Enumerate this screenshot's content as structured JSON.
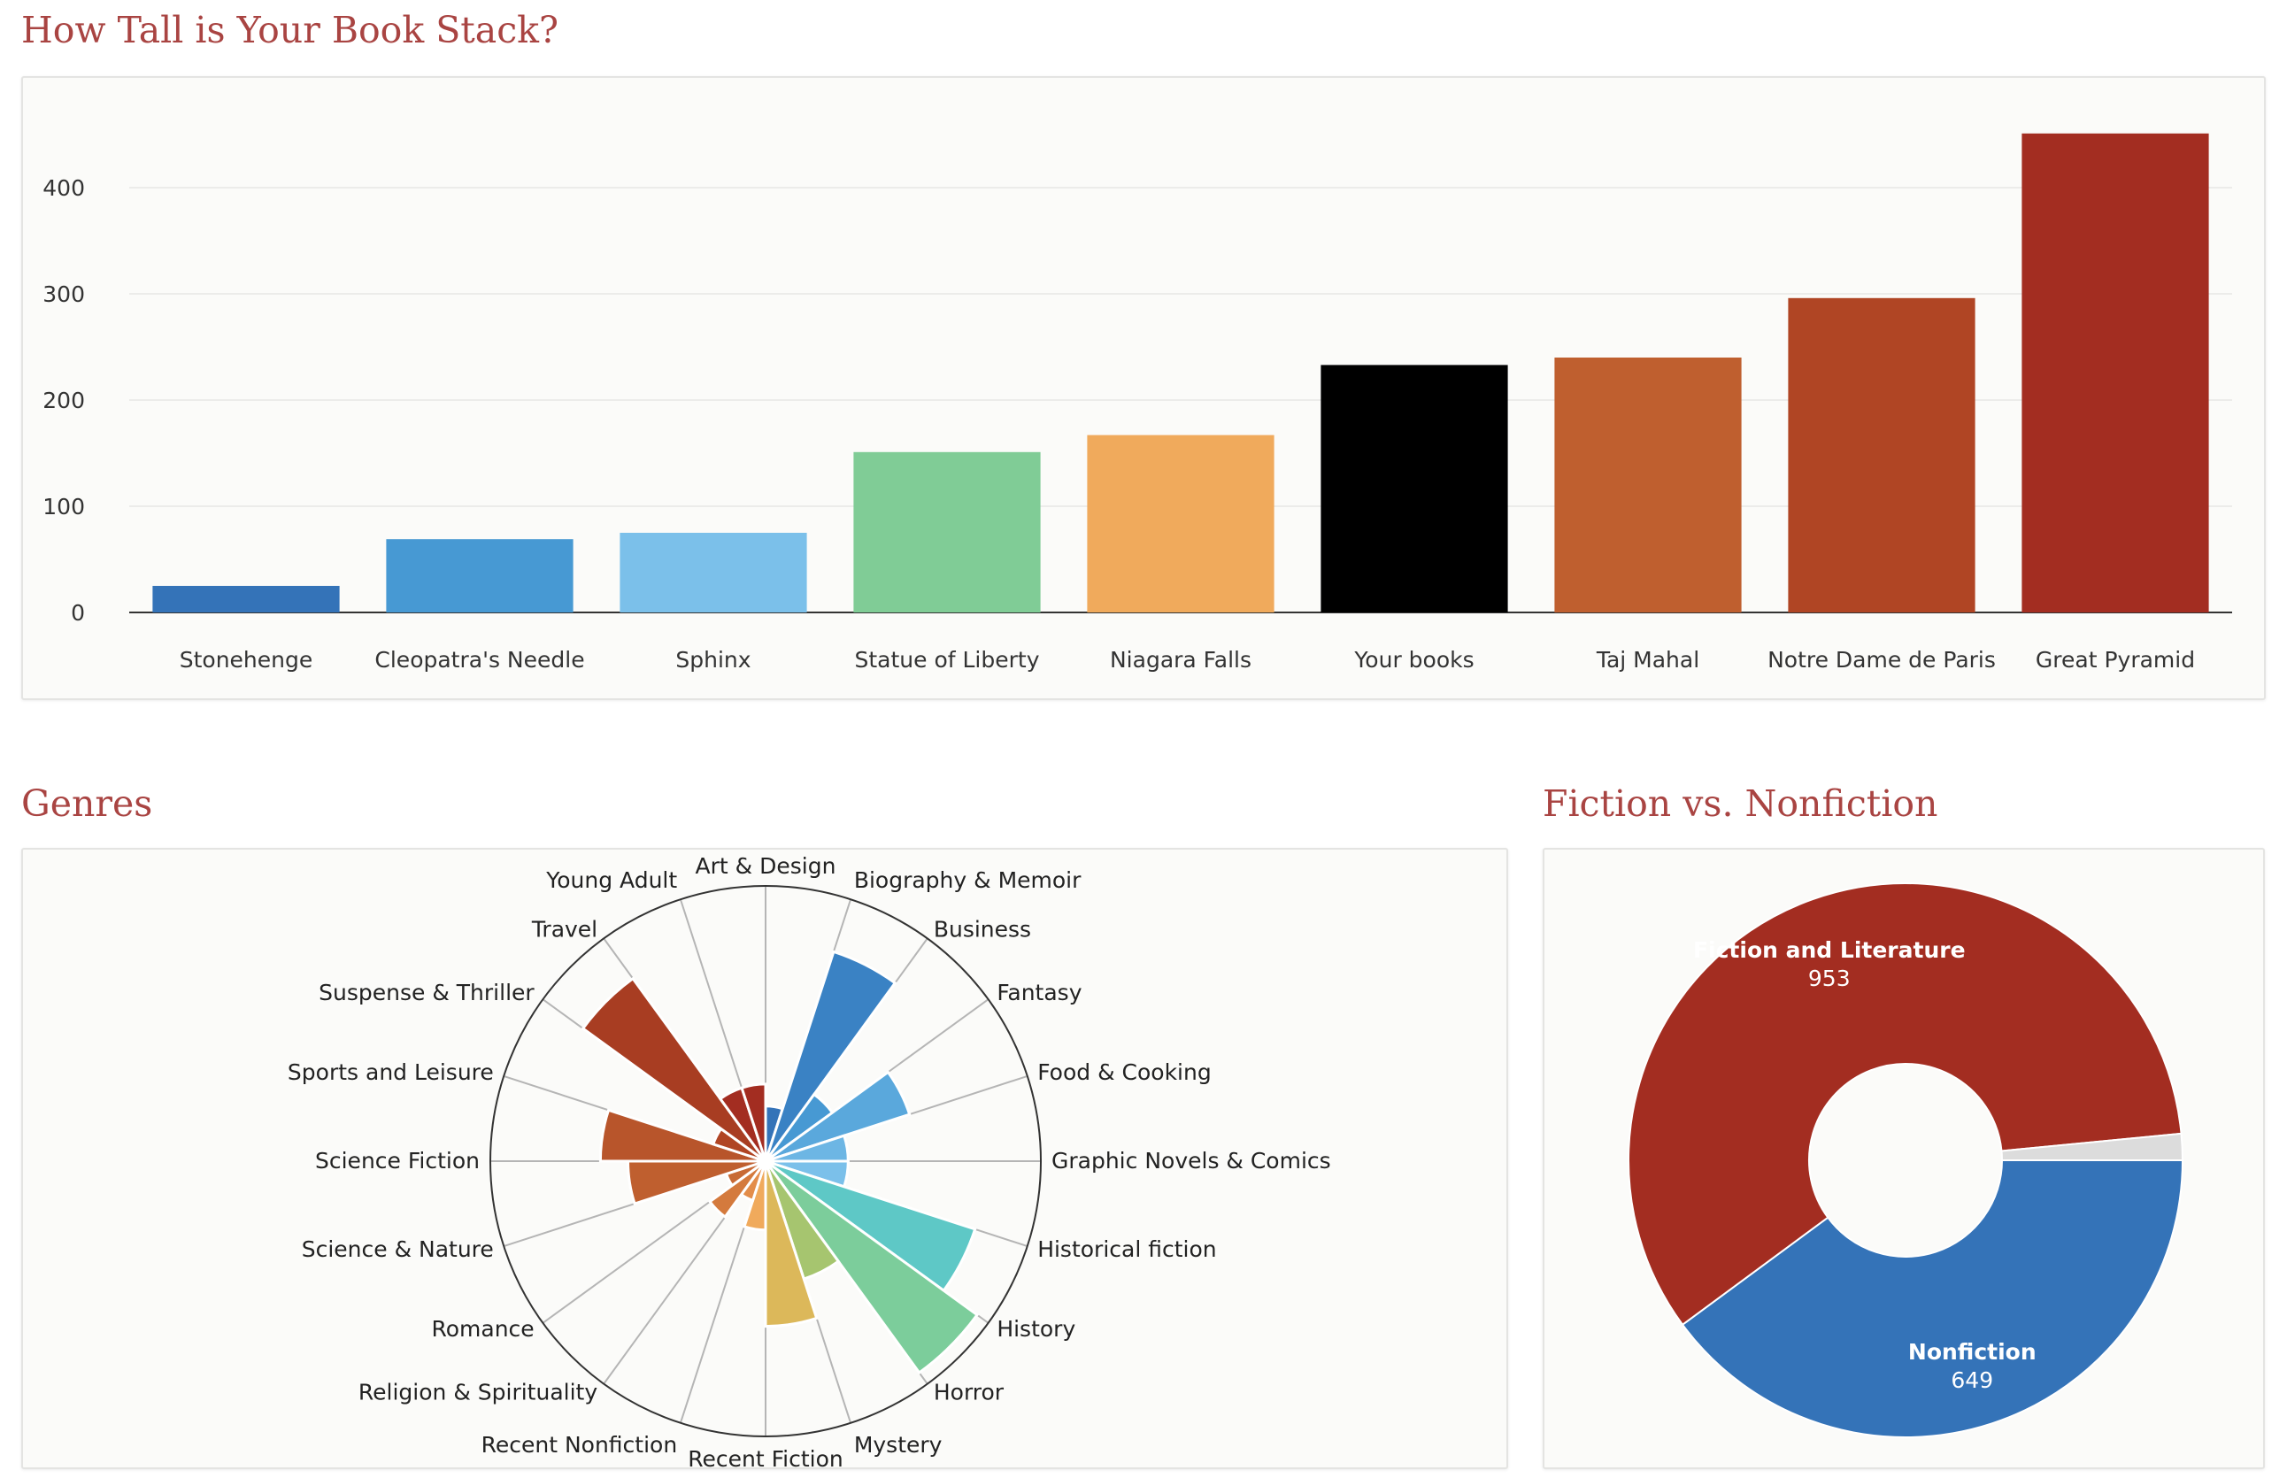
{
  "sections": {
    "book_stack_title": "How Tall is Your Book Stack?",
    "genres_title": "Genres",
    "fiction_title": "Fiction vs. Nonfiction"
  },
  "chart_data": [
    {
      "type": "bar",
      "title": "How Tall is Your Book Stack?",
      "categories": [
        "Stonehenge",
        "Cleopatra's Needle",
        "Sphinx",
        "Statue of Liberty",
        "Niagara Falls",
        "Your books",
        "Taj Mahal",
        "Notre Dame de Paris",
        "Great Pyramid"
      ],
      "values": [
        25,
        69,
        75,
        151,
        167,
        233,
        240,
        296,
        451
      ],
      "colors": [
        "#3473b8",
        "#4799d3",
        "#7bc0ea",
        "#80cc96",
        "#f0aa5c",
        "#000000",
        "#bf5f2f",
        "#b04524",
        "#a32d21"
      ],
      "yticks": [
        0,
        100,
        200,
        300,
        400
      ],
      "ylim": [
        0,
        470
      ],
      "grid": true
    },
    {
      "type": "polar-area",
      "title": "Genres",
      "categories": [
        "Art & Design",
        "Biography & Memoir",
        "Business",
        "Fantasy",
        "Food & Cooking",
        "Graphic Novels & Comics",
        "Historical fiction",
        "History",
        "Horror",
        "Mystery",
        "Recent Fiction",
        "Recent Nonfiction",
        "Religion & Spirituality",
        "Romance",
        "Science & Nature",
        "Science Fiction",
        "Sports and Leisure",
        "Suspense & Thriller",
        "Travel",
        "Young Adult"
      ],
      "values": [
        0.2,
        0.8,
        0.3,
        0.55,
        0.3,
        0.3,
        0.8,
        0.95,
        0.45,
        0.6,
        0.25,
        0.15,
        0.25,
        0.15,
        0.5,
        0.6,
        0.2,
        0.82,
        0.28,
        0.28
      ],
      "colors": [
        "#3473b8",
        "#3a82c4",
        "#4799d3",
        "#5aa8dc",
        "#6db6e4",
        "#7bc0ea",
        "#5ec8c6",
        "#7ccd9b",
        "#a6c56f",
        "#dcb85a",
        "#f0aa5c",
        "#e38d4a",
        "#d47a3d",
        "#c86a35",
        "#bf5f2f",
        "#b8552b",
        "#b04524",
        "#a83d22",
        "#a32d21",
        "#a32d21"
      ]
    },
    {
      "type": "pie",
      "title": "Fiction vs. Nonfiction",
      "slices": [
        {
          "label": "Nonfiction",
          "value": 649,
          "color": "#3473b8"
        },
        {
          "label": "Fiction and Literature",
          "value": 953,
          "color": "#a32d21"
        },
        {
          "label": "",
          "value": 25,
          "color": "#dcdcdc"
        }
      ]
    }
  ]
}
